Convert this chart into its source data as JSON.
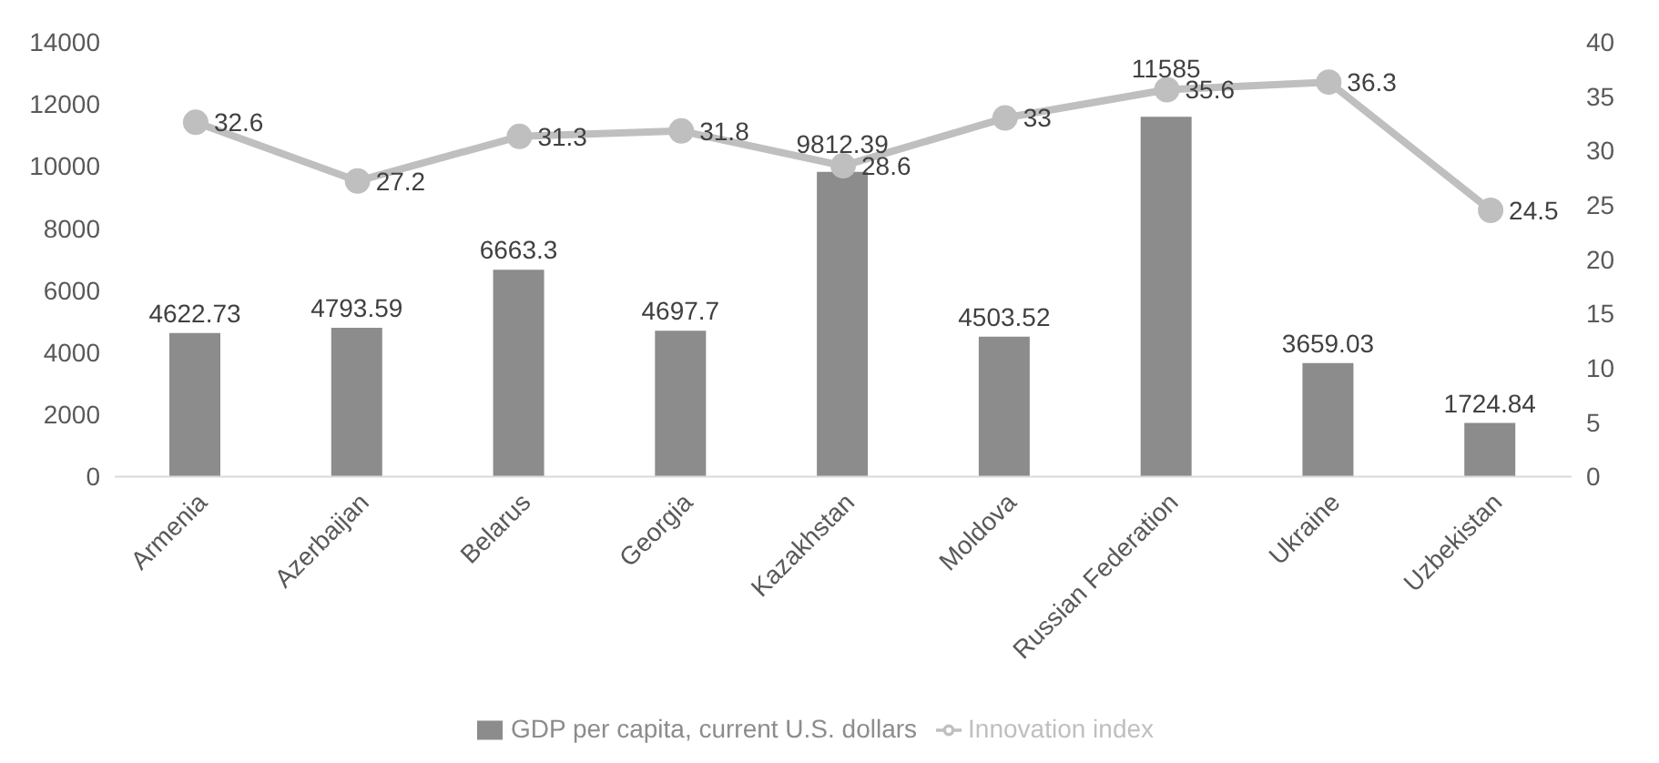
{
  "chart_data": {
    "type": "bar",
    "categories": [
      "Armenia",
      "Azerbaijan",
      "Belarus",
      "Georgia",
      "Kazakhstan",
      "Moldova",
      "Russian Federation",
      "Ukraine",
      "Uzbekistan"
    ],
    "series": [
      {
        "name": "GDP per capita, current U.S. dollars",
        "type": "bar",
        "color": "#8c8c8c",
        "values": [
          4622.73,
          4793.59,
          6663.3,
          4697.7,
          9812.39,
          4503.52,
          11585,
          3659.03,
          1724.84
        ]
      },
      {
        "name": "Innovation index",
        "type": "line",
        "axis": "y2",
        "color": "#bfbfbf",
        "values": [
          32.6,
          27.2,
          31.3,
          31.8,
          28.6,
          33,
          35.6,
          36.3,
          24.5
        ]
      }
    ],
    "ylim": [
      0,
      14000
    ],
    "yticks": [
      0,
      2000,
      4000,
      6000,
      8000,
      10000,
      12000,
      14000
    ],
    "y2lim": [
      0,
      40
    ],
    "y2ticks": [
      0,
      5,
      10,
      15,
      20,
      25,
      30,
      35,
      40
    ],
    "data_labels": true,
    "legend": "bottom",
    "marker": "circle",
    "grid": false
  }
}
